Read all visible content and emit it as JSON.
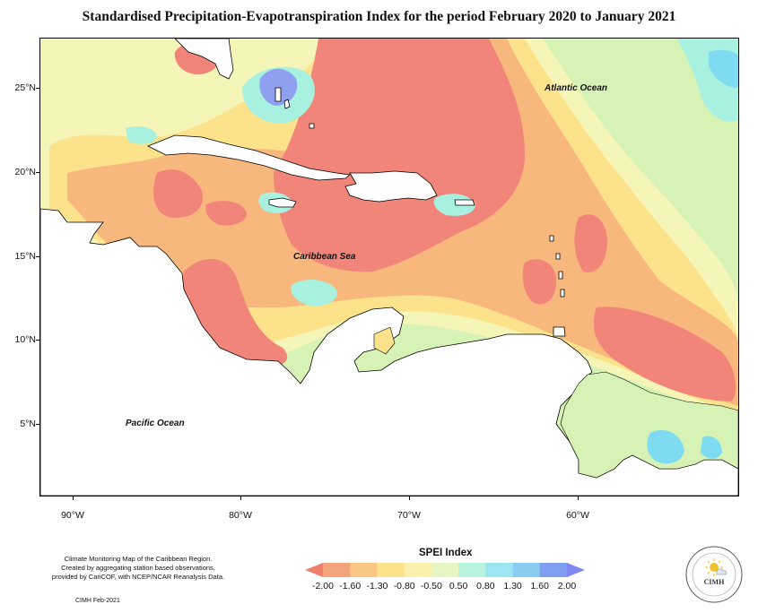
{
  "title": "Standardised Precipitation-Evapotranspiration Index for the period February 2020 to January 2021",
  "map": {
    "labels": {
      "atlantic": "Atlantic Ocean",
      "caribbean": "Caribbean Sea",
      "pacific": "Pacific Ocean"
    },
    "lat_ticks": [
      "25°N",
      "20°N",
      "15°N",
      "10°N",
      "5°N"
    ],
    "lon_ticks": [
      "90°W",
      "80°W",
      "70°W",
      "60°W"
    ],
    "colors": {
      "dry_strong": "#f28579",
      "dry_moderate": "#f7b77d",
      "dry_mild": "#fde28c",
      "near_normal": "#f6f5b8",
      "normal_wet": "#d6f3b5",
      "wet_mild": "#a8f0e0",
      "wet_moderate": "#7fdcf0",
      "wet_strong": "#8fa0f0",
      "land": "#ffffff"
    }
  },
  "legend": {
    "title": "SPEI Index",
    "ticks": [
      "-2.00",
      "-1.60",
      "-1.30",
      "-0.80",
      "-0.50",
      "0.50",
      "0.80",
      "1.30",
      "1.60",
      "2.00"
    ],
    "colors": [
      "#f07d6e",
      "#f5a57d",
      "#f9c684",
      "#fde28c",
      "#f9f2ae",
      "#e6f7c3",
      "#b8f3de",
      "#9ae6f2",
      "#88cdef",
      "#7f9ff0",
      "#7f88f2"
    ]
  },
  "credit": {
    "lines": [
      "Climate Monitoring Map of the Caribbean Region.",
      "Created by aggregating station based observations,",
      "provided by CariCOF, with NCEP/NCAR Reanalysis Data."
    ],
    "date": "CIMH Feb-2021"
  },
  "logo": {
    "text": "CIMH",
    "icon": "sun-cloud-icon"
  }
}
